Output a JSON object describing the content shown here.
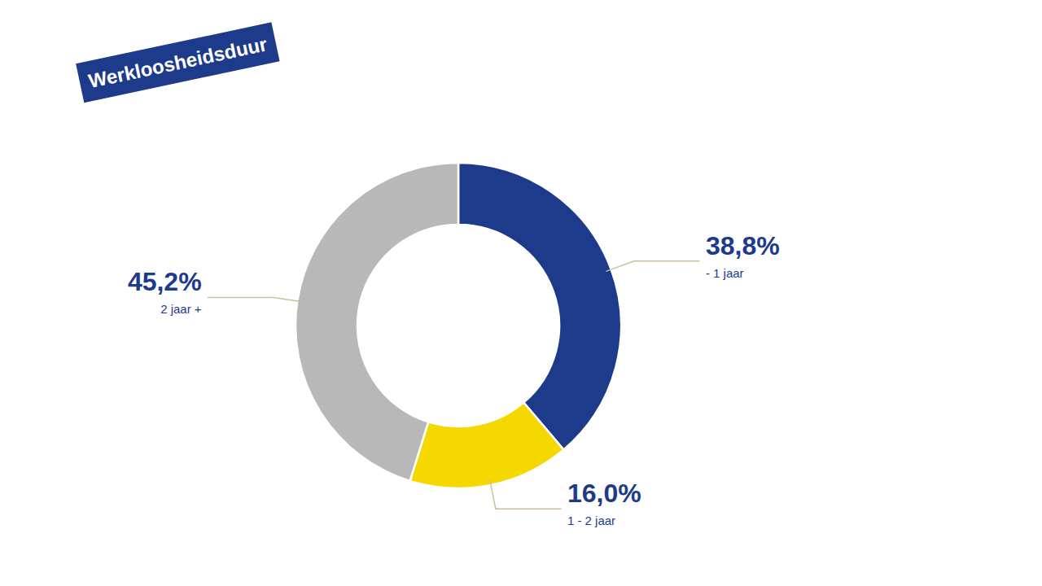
{
  "chart_data": {
    "type": "donut",
    "title": "Werkloosheidsduur",
    "categories": [
      "- 1 jaar",
      "1 - 2 jaar",
      "2 jaar +"
    ],
    "values": [
      38.8,
      16.0,
      45.2
    ],
    "value_labels": [
      "38,8%",
      "16,0%",
      "45,2%"
    ],
    "colors": [
      "#1e3a8a",
      "#f5d800",
      "#b8b8b8"
    ],
    "data_labels": true
  }
}
